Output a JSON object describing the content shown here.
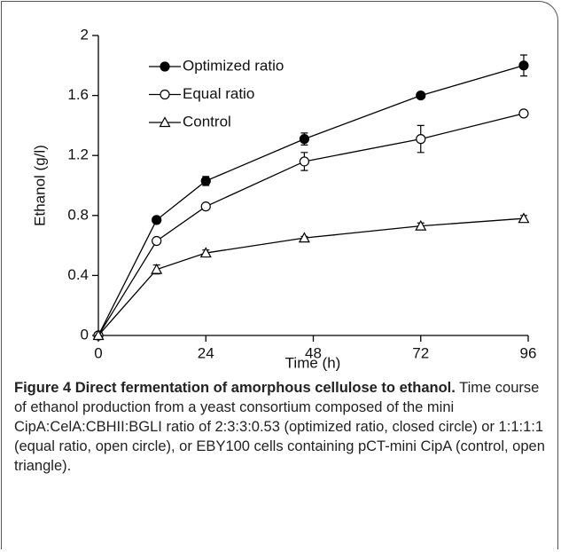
{
  "chart_data": {
    "type": "line",
    "xlabel": "Time (h)",
    "ylabel": "Ethanol (g/l)",
    "x": [
      0,
      13,
      24,
      46,
      72,
      95
    ],
    "series": [
      {
        "name": "Optimized ratio",
        "color": "#000000",
        "marker": "circle",
        "marker_fill": "filled",
        "values": [
          0,
          0.77,
          1.03,
          1.31,
          1.6,
          1.8
        ],
        "errors": [
          0,
          0.01,
          0.03,
          0.04,
          0.01,
          0.07
        ]
      },
      {
        "name": "Equal ratio",
        "color": "#000000",
        "marker": "circle",
        "marker_fill": "open",
        "values": [
          0,
          0.63,
          0.86,
          1.16,
          1.31,
          1.48
        ],
        "errors": [
          0,
          0,
          0,
          0.06,
          0.09,
          0
        ]
      },
      {
        "name": "Control",
        "color": "#000000",
        "marker": "triangle",
        "marker_fill": "open",
        "values": [
          0,
          0.44,
          0.55,
          0.65,
          0.73,
          0.78
        ],
        "errors": [
          0,
          0.03,
          0.02,
          0.01,
          0.02,
          0.02
        ]
      }
    ],
    "xlim": [
      0,
      96
    ],
    "xticks": [
      0,
      24,
      48,
      72,
      96
    ],
    "ylim": [
      0,
      2
    ],
    "yticks": [
      0,
      0.4,
      0.8,
      1.2,
      1.6,
      2
    ],
    "legend": "top-left"
  },
  "caption": {
    "title": "Figure 4 Direct fermentation of amorphous cellulose to ethanol.",
    "text": "Time course of ethanol production from a yeast consortium composed of the mini CipA:CelA:CBHII:BGLI ratio of 2:3:3:0.53 (optimized ratio, closed circle) or 1:1:1:1 (equal ratio, open circle), or EBY100 cells containing pCT-mini CipA (control, open triangle)."
  }
}
